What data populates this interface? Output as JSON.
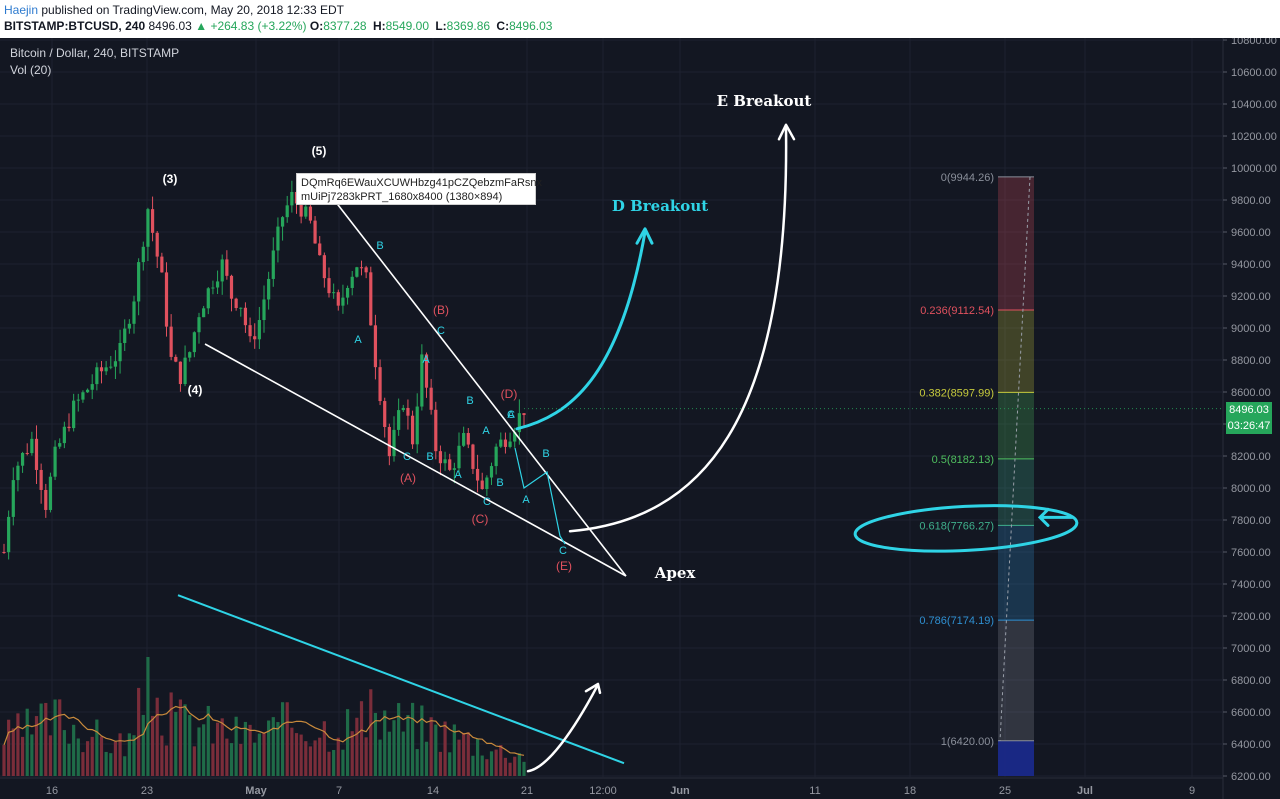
{
  "header": {
    "author": "Haejin",
    "published": "published on TradingView.com, May 20, 2018 12:33 EDT",
    "symbol": "BITSTAMP:BTCUSD, 240",
    "last": "8496.03",
    "change": "+264.83 (+3.22%)",
    "o_label": "O:",
    "o": "8377.28",
    "h_label": "H:",
    "h": "8549.00",
    "l_label": "L:",
    "l": "8369.86",
    "c_label": "C:",
    "c": "8496.03"
  },
  "chart_title": "Bitcoin / Dollar, 240, BITSTAMP",
  "volume_label": "Vol (20)",
  "tooltip": {
    "line1": "DQmRq6EWauXCUWHbzg41pCZQebzmFaRsnx",
    "line2": "mUiPj7283kPRT_1680x8400 (1380×894)"
  },
  "price_tag": "8496.03",
  "timer_tag": "03:26:47",
  "colors": {
    "background": "#131722",
    "bull": "#26a65b",
    "bear": "#e0515e",
    "cyan": "#2fd4e6",
    "white_line": "#ffffff"
  },
  "chart_data": {
    "type": "candlestick",
    "symbol": "BTCUSD",
    "timeframe": "240",
    "exchange": "BITSTAMP",
    "y_axis_ticks": [
      6200,
      6400,
      6600,
      6800,
      7000,
      7200,
      7400,
      7600,
      7800,
      8000,
      8200,
      8400,
      8600,
      8800,
      9000,
      9200,
      9400,
      9600,
      9800,
      10000,
      10200,
      10400,
      10600,
      10800
    ],
    "y_axis_labels": [
      "6200.00",
      "6400.00",
      "6600.00",
      "6800.00",
      "7000.00",
      "7200.00",
      "7400.00",
      "7600.00",
      "7800.00",
      "8000.00",
      "8200.00",
      "8400.00",
      "8600.00",
      "8800.00",
      "9000.00",
      "9200.00",
      "9400.00",
      "9600.00",
      "9800.00",
      "10000.00",
      "10200.00",
      "10400.00",
      "10600.00",
      "10800.00"
    ],
    "ylim": [
      6200,
      10800
    ],
    "x_axis_labels": [
      "16",
      "23",
      "May",
      "7",
      "14",
      "21",
      "12:00",
      "Jun",
      "11",
      "18",
      "25",
      "Jul",
      "9"
    ],
    "price_path": [
      [
        0,
        7600
      ],
      [
        2,
        8100
      ],
      [
        6,
        8300
      ],
      [
        9,
        7900
      ],
      [
        11,
        8200
      ],
      [
        15,
        8500
      ],
      [
        20,
        8700
      ],
      [
        25,
        8850
      ],
      [
        28,
        9200
      ],
      [
        31,
        9750
      ],
      [
        34,
        9300
      ],
      [
        36,
        8800
      ],
      [
        38,
        8700
      ],
      [
        40,
        8850
      ],
      [
        42,
        9100
      ],
      [
        45,
        9300
      ],
      [
        47,
        9400
      ],
      [
        49,
        9200
      ],
      [
        51,
        9150
      ],
      [
        53,
        8900
      ],
      [
        55,
        9050
      ],
      [
        58,
        9450
      ],
      [
        60,
        9700
      ],
      [
        62,
        9820
      ],
      [
        64,
        9750
      ],
      [
        66,
        9650
      ],
      [
        68,
        9400
      ],
      [
        70,
        9250
      ],
      [
        72,
        9100
      ],
      [
        74,
        9300
      ],
      [
        76,
        9400
      ],
      [
        78,
        9300
      ],
      [
        80,
        8800
      ],
      [
        83,
        8200
      ],
      [
        86,
        8550
      ],
      [
        88,
        8300
      ],
      [
        90,
        8800
      ],
      [
        93,
        8250
      ],
      [
        96,
        8100
      ],
      [
        99,
        8300
      ],
      [
        101,
        8150
      ],
      [
        103,
        7980
      ],
      [
        106,
        8250
      ],
      [
        109,
        8350
      ],
      [
        112,
        8496
      ]
    ],
    "volume_path": [
      [
        0,
        0.35
      ],
      [
        6,
        0.45
      ],
      [
        12,
        0.55
      ],
      [
        18,
        0.4
      ],
      [
        24,
        0.3
      ],
      [
        28,
        0.35
      ],
      [
        31,
        1.0
      ],
      [
        34,
        0.55
      ],
      [
        40,
        0.5
      ],
      [
        46,
        0.45
      ],
      [
        50,
        0.4
      ],
      [
        56,
        0.4
      ],
      [
        62,
        0.5
      ],
      [
        70,
        0.45
      ],
      [
        80,
        0.55
      ],
      [
        86,
        0.5
      ],
      [
        92,
        0.45
      ],
      [
        100,
        0.35
      ],
      [
        106,
        0.25
      ],
      [
        112,
        0.2
      ]
    ],
    "fibonacci": [
      {
        "level": "0",
        "price": 9944.26,
        "label": "0(9944.26)",
        "color": "#8a8f9a"
      },
      {
        "level": "0.236",
        "price": 9112.54,
        "label": "0.236(9112.54)",
        "color": "#e0515e"
      },
      {
        "level": "0.382",
        "price": 8597.99,
        "label": "0.382(8597.99)",
        "color": "#c6c93c"
      },
      {
        "level": "0.5",
        "price": 8182.13,
        "label": "0.5(8182.13)",
        "color": "#4fbf5f"
      },
      {
        "level": "0.618",
        "price": 7766.27,
        "label": "0.618(7766.27)",
        "color": "#3fb08c"
      },
      {
        "level": "0.786",
        "price": 7174.19,
        "label": "0.786(7174.19)",
        "color": "#2e8fd1"
      },
      {
        "level": "1",
        "price": 6420.0,
        "label": "1(6420.00)",
        "color": "#8a8f9a"
      }
    ],
    "annotations": [
      {
        "text": "(3)",
        "color": "#ffffff"
      },
      {
        "text": "(4)",
        "color": "#ffffff"
      },
      {
        "text": "(5)",
        "color": "#ffffff"
      },
      {
        "text": "B",
        "color": "#2fd4e6"
      },
      {
        "text": "A",
        "color": "#2fd4e6"
      },
      {
        "text": "(B)",
        "color": "#e0515e"
      },
      {
        "text": "C",
        "color": "#2fd4e6"
      },
      {
        "text": "A",
        "color": "#2fd4e6"
      },
      {
        "text": "B",
        "color": "#2fd4e6"
      },
      {
        "text": "C",
        "color": "#2fd4e6"
      },
      {
        "text": "B",
        "color": "#2fd4e6"
      },
      {
        "text": "(A)",
        "color": "#e0515e"
      },
      {
        "text": "A",
        "color": "#2fd4e6"
      },
      {
        "text": "A",
        "color": "#2fd4e6"
      },
      {
        "text": "B",
        "color": "#2fd4e6"
      },
      {
        "text": "C",
        "color": "#2fd4e6"
      },
      {
        "text": "(C)",
        "color": "#e0515e"
      },
      {
        "text": "(D)",
        "color": "#e0515e"
      },
      {
        "text": "C",
        "color": "#2fd4e6"
      },
      {
        "text": "A",
        "color": "#2fd4e6"
      },
      {
        "text": "B",
        "color": "#2fd4e6"
      },
      {
        "text": "A",
        "color": "#2fd4e6"
      },
      {
        "text": "C",
        "color": "#2fd4e6"
      },
      {
        "text": "(E)",
        "color": "#e0515e"
      }
    ],
    "callouts": {
      "e_breakout": "E Breakout",
      "d_breakout": "D Breakout",
      "apex": "Apex"
    }
  }
}
